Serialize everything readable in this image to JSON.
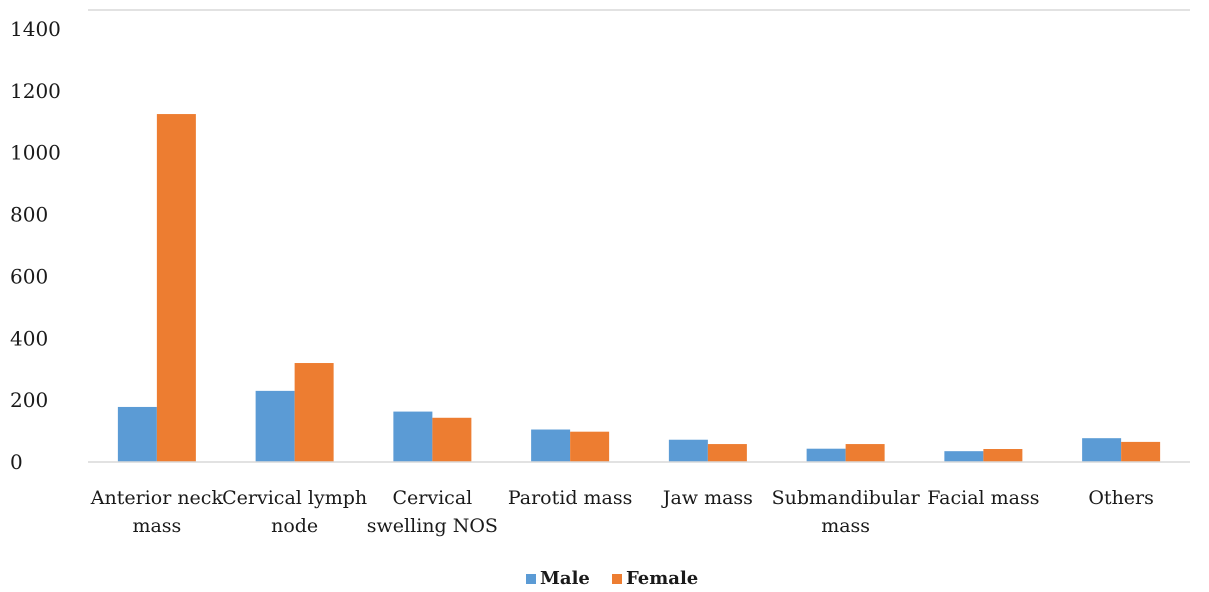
{
  "chart_data": {
    "type": "bar",
    "categories": [
      [
        "Anterior neck",
        "mass"
      ],
      [
        "Cervical lymph",
        "node"
      ],
      [
        "Cervical",
        "swelling NOS"
      ],
      [
        "Parotid mass"
      ],
      [
        "Jaw mass"
      ],
      [
        "Submandibular",
        "mass"
      ],
      [
        "Facial mass"
      ],
      [
        "Others"
      ]
    ],
    "series": [
      {
        "name": "Male",
        "color": "#5b9bd5",
        "values": [
          178,
          230,
          163,
          105,
          72,
          43,
          35,
          77
        ]
      },
      {
        "name": "Female",
        "color": "#ed7d31",
        "values": [
          1125,
          320,
          143,
          98,
          58,
          58,
          42,
          65
        ]
      }
    ],
    "ylim": [
      0,
      1400
    ],
    "yticks": [
      0,
      200,
      400,
      600,
      800,
      1000,
      1200,
      1400
    ],
    "grid": false,
    "legend": "bottom-center"
  }
}
